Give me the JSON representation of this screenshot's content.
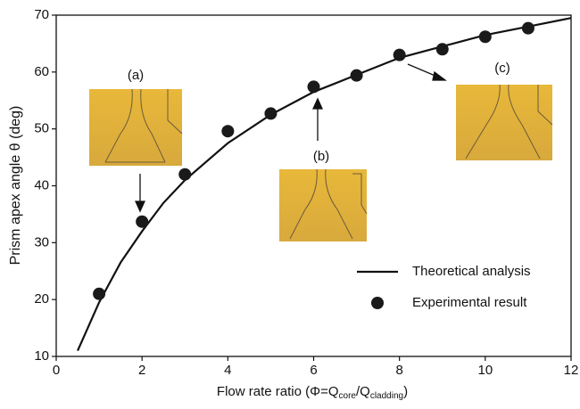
{
  "chart_data": {
    "type": "scatter",
    "x_label": [
      "Flow rate ratio (Φ=Q",
      "core",
      "/Q",
      "cladding",
      ")"
    ],
    "y_label": "Prism apex angle θ (deg)",
    "xlim": [
      0,
      12
    ],
    "xticks": [
      0,
      2,
      4,
      6,
      8,
      10,
      12
    ],
    "ylim": [
      10,
      70
    ],
    "yticks": [
      10,
      20,
      30,
      40,
      50,
      60,
      70
    ],
    "legend": "lower right",
    "series": [
      {
        "name": "Theoretical analysis",
        "mode": "line",
        "color": "#111111",
        "x": [
          0.5,
          1,
          1.5,
          2,
          2.5,
          3,
          4,
          5,
          6,
          7,
          8,
          9,
          10,
          11,
          12
        ],
        "values": [
          11,
          19.5,
          26.5,
          32,
          37,
          41,
          47.5,
          52.5,
          56.5,
          59.5,
          62.5,
          64.5,
          66.5,
          68,
          69.5
        ]
      },
      {
        "name": "Experimental result",
        "mode": "markers",
        "color": "#1a1a1a",
        "x": [
          1,
          2,
          3,
          4,
          5,
          6,
          7,
          8,
          9,
          10,
          11
        ],
        "values": [
          21,
          33.7,
          42,
          49.6,
          52.7,
          57.4,
          59.4,
          63,
          64,
          66.2,
          67.7
        ]
      }
    ],
    "annotations": [
      "(a)",
      "(b)",
      "(c)"
    ]
  }
}
